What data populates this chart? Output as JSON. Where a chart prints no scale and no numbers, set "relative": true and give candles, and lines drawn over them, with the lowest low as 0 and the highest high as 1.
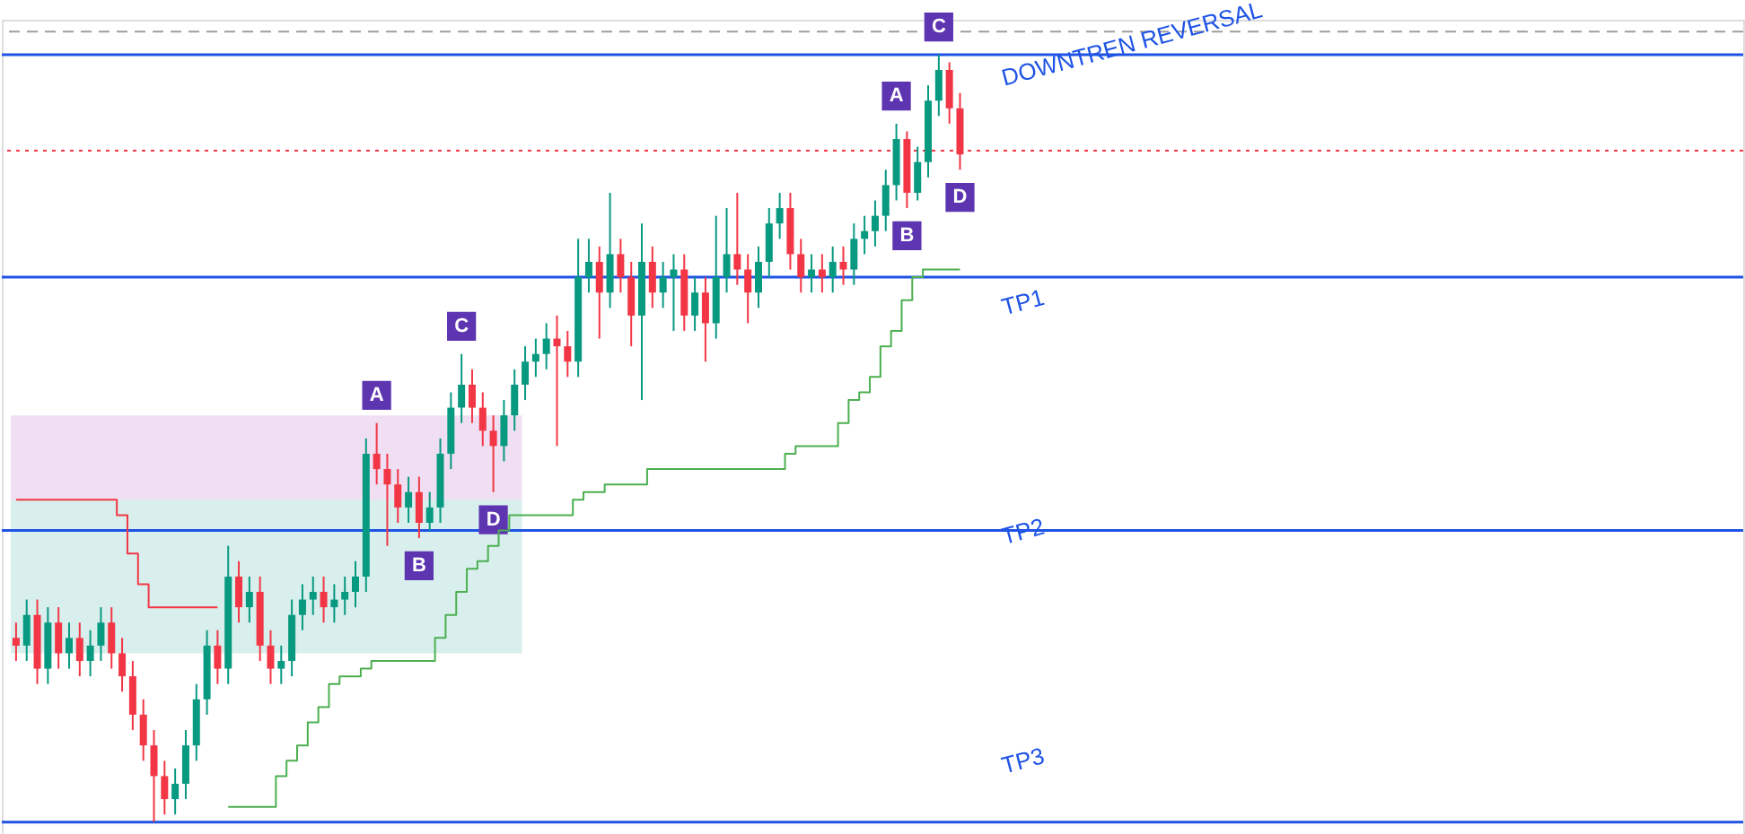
{
  "chart_data": {
    "type": "candlestick",
    "relative": true,
    "categories": [
      null,
      null,
      null,
      null,
      null,
      null,
      null,
      null,
      null,
      null,
      null,
      null,
      null,
      null,
      null,
      null,
      null,
      null,
      null,
      null,
      null,
      null,
      null,
      null,
      null,
      null,
      null,
      null,
      null,
      null,
      null,
      null,
      null,
      null,
      null,
      null,
      null,
      null,
      null,
      null,
      null,
      null,
      null,
      null,
      null,
      null,
      null,
      null,
      null,
      null,
      null,
      null,
      null,
      null,
      null,
      null,
      null,
      null,
      null,
      null,
      null,
      null,
      null,
      null,
      null,
      null,
      null,
      null,
      null,
      null,
      null,
      null,
      null,
      null,
      null,
      null,
      null,
      null,
      null,
      null,
      null,
      null,
      null,
      null,
      null,
      null,
      null,
      null,
      null,
      null
    ],
    "ohlc": [
      [
        0.24,
        0.26,
        0.21,
        0.23
      ],
      [
        0.23,
        0.29,
        0.21,
        0.27
      ],
      [
        0.27,
        0.29,
        0.18,
        0.2
      ],
      [
        0.2,
        0.28,
        0.18,
        0.26
      ],
      [
        0.26,
        0.28,
        0.2,
        0.22
      ],
      [
        0.22,
        0.26,
        0.2,
        0.24
      ],
      [
        0.24,
        0.26,
        0.19,
        0.21
      ],
      [
        0.21,
        0.25,
        0.19,
        0.23
      ],
      [
        0.23,
        0.28,
        0.21,
        0.26
      ],
      [
        0.26,
        0.28,
        0.2,
        0.22
      ],
      [
        0.22,
        0.24,
        0.17,
        0.19
      ],
      [
        0.19,
        0.21,
        0.12,
        0.14
      ],
      [
        0.14,
        0.16,
        0.08,
        0.1
      ],
      [
        0.1,
        0.12,
        0.0,
        0.06
      ],
      [
        0.06,
        0.08,
        0.01,
        0.03
      ],
      [
        0.03,
        0.07,
        0.01,
        0.05
      ],
      [
        0.05,
        0.12,
        0.03,
        0.1
      ],
      [
        0.1,
        0.18,
        0.08,
        0.16
      ],
      [
        0.16,
        0.25,
        0.14,
        0.23
      ],
      [
        0.23,
        0.25,
        0.18,
        0.2
      ],
      [
        0.2,
        0.36,
        0.18,
        0.32
      ],
      [
        0.32,
        0.34,
        0.26,
        0.28
      ],
      [
        0.28,
        0.32,
        0.26,
        0.3
      ],
      [
        0.3,
        0.32,
        0.21,
        0.23
      ],
      [
        0.23,
        0.25,
        0.18,
        0.2
      ],
      [
        0.2,
        0.23,
        0.18,
        0.21
      ],
      [
        0.21,
        0.29,
        0.19,
        0.27
      ],
      [
        0.27,
        0.31,
        0.25,
        0.29
      ],
      [
        0.29,
        0.32,
        0.27,
        0.3
      ],
      [
        0.3,
        0.32,
        0.26,
        0.28
      ],
      [
        0.28,
        0.31,
        0.26,
        0.29
      ],
      [
        0.29,
        0.32,
        0.27,
        0.3
      ],
      [
        0.3,
        0.34,
        0.28,
        0.32
      ],
      [
        0.32,
        0.5,
        0.3,
        0.48
      ],
      [
        0.48,
        0.52,
        0.44,
        0.46
      ],
      [
        0.46,
        0.48,
        0.36,
        0.44
      ],
      [
        0.44,
        0.46,
        0.39,
        0.41
      ],
      [
        0.41,
        0.45,
        0.39,
        0.43
      ],
      [
        0.43,
        0.45,
        0.37,
        0.39
      ],
      [
        0.39,
        0.43,
        0.38,
        0.41
      ],
      [
        0.41,
        0.5,
        0.39,
        0.48
      ],
      [
        0.48,
        0.56,
        0.46,
        0.54
      ],
      [
        0.54,
        0.61,
        0.52,
        0.57
      ],
      [
        0.57,
        0.59,
        0.52,
        0.54
      ],
      [
        0.54,
        0.56,
        0.49,
        0.51
      ],
      [
        0.51,
        0.53,
        0.43,
        0.49
      ],
      [
        0.49,
        0.55,
        0.47,
        0.53
      ],
      [
        0.53,
        0.59,
        0.51,
        0.57
      ],
      [
        0.57,
        0.62,
        0.55,
        0.6
      ],
      [
        0.6,
        0.63,
        0.58,
        0.61
      ],
      [
        0.61,
        0.65,
        0.59,
        0.63
      ],
      [
        0.63,
        0.66,
        0.49,
        0.62
      ],
      [
        0.62,
        0.64,
        0.58,
        0.6
      ],
      [
        0.6,
        0.76,
        0.58,
        0.71
      ],
      [
        0.71,
        0.76,
        0.69,
        0.73
      ],
      [
        0.73,
        0.75,
        0.63,
        0.69
      ],
      [
        0.69,
        0.82,
        0.67,
        0.74
      ],
      [
        0.74,
        0.76,
        0.69,
        0.71
      ],
      [
        0.71,
        0.73,
        0.62,
        0.66
      ],
      [
        0.66,
        0.78,
        0.55,
        0.73
      ],
      [
        0.73,
        0.75,
        0.67,
        0.69
      ],
      [
        0.69,
        0.73,
        0.67,
        0.71
      ],
      [
        0.71,
        0.74,
        0.64,
        0.72
      ],
      [
        0.72,
        0.74,
        0.64,
        0.66
      ],
      [
        0.66,
        0.71,
        0.64,
        0.69
      ],
      [
        0.69,
        0.71,
        0.6,
        0.65
      ],
      [
        0.65,
        0.79,
        0.63,
        0.71
      ],
      [
        0.71,
        0.8,
        0.69,
        0.74
      ],
      [
        0.74,
        0.82,
        0.7,
        0.72
      ],
      [
        0.72,
        0.74,
        0.65,
        0.69
      ],
      [
        0.69,
        0.75,
        0.67,
        0.73
      ],
      [
        0.73,
        0.8,
        0.71,
        0.78
      ],
      [
        0.78,
        0.82,
        0.76,
        0.8
      ],
      [
        0.8,
        0.82,
        0.72,
        0.74
      ],
      [
        0.74,
        0.76,
        0.69,
        0.71
      ],
      [
        0.71,
        0.74,
        0.69,
        0.72
      ],
      [
        0.72,
        0.74,
        0.69,
        0.71
      ],
      [
        0.71,
        0.75,
        0.69,
        0.73
      ],
      [
        0.73,
        0.75,
        0.7,
        0.72
      ],
      [
        0.72,
        0.78,
        0.7,
        0.76
      ],
      [
        0.76,
        0.79,
        0.74,
        0.77
      ],
      [
        0.77,
        0.81,
        0.75,
        0.79
      ],
      [
        0.79,
        0.85,
        0.77,
        0.83
      ],
      [
        0.83,
        0.91,
        0.81,
        0.89
      ],
      [
        0.89,
        0.9,
        0.8,
        0.82
      ],
      [
        0.82,
        0.88,
        0.81,
        0.86
      ],
      [
        0.86,
        0.96,
        0.84,
        0.94
      ],
      [
        0.94,
        1.0,
        0.92,
        0.98
      ],
      [
        0.98,
        0.99,
        0.91,
        0.93
      ],
      [
        0.93,
        0.95,
        0.85,
        0.87
      ]
    ],
    "series": [
      {
        "type": "step",
        "color": "#4caf50",
        "values": [
          null,
          null,
          null,
          null,
          null,
          null,
          null,
          null,
          null,
          null,
          null,
          null,
          null,
          null,
          null,
          null,
          null,
          null,
          null,
          null,
          0.02,
          0.02,
          0.02,
          0.02,
          0.02,
          0.06,
          0.08,
          0.1,
          0.13,
          0.15,
          0.18,
          0.19,
          0.19,
          0.2,
          0.21,
          0.21,
          0.21,
          0.21,
          0.21,
          0.21,
          0.24,
          0.27,
          0.3,
          0.33,
          0.34,
          0.36,
          0.38,
          0.4,
          0.4,
          0.4,
          0.4,
          0.4,
          0.4,
          0.42,
          0.43,
          0.43,
          0.44,
          0.44,
          0.44,
          0.44,
          0.46,
          0.46,
          0.46,
          0.46,
          0.46,
          0.46,
          0.46,
          0.46,
          0.46,
          0.46,
          0.46,
          0.46,
          0.46,
          0.48,
          0.49,
          0.49,
          0.49,
          0.49,
          0.52,
          0.55,
          0.56,
          0.58,
          0.62,
          0.64,
          0.68,
          0.71,
          0.72,
          0.72,
          0.72,
          0.72
        ]
      },
      {
        "type": "step",
        "color": "#f23645",
        "values": [
          0.42,
          0.42,
          0.42,
          0.42,
          0.42,
          0.42,
          0.42,
          0.42,
          0.42,
          0.42,
          0.4,
          0.35,
          0.31,
          0.28,
          0.28,
          0.28,
          0.28,
          0.28,
          0.28,
          0.28,
          null,
          null,
          null,
          null,
          null,
          null,
          null,
          null,
          null,
          null,
          null,
          null,
          null,
          null,
          null,
          null,
          null,
          null,
          null,
          null,
          null,
          null,
          null,
          null,
          null,
          null,
          null,
          null,
          null,
          null,
          null,
          null,
          null,
          null,
          null,
          null,
          null,
          null,
          null,
          null,
          null,
          null,
          null,
          null,
          null,
          null,
          null,
          null,
          null,
          null,
          null,
          null,
          null,
          null,
          null,
          null,
          null,
          null,
          null,
          null,
          null,
          null,
          null,
          null,
          null,
          null,
          null,
          null,
          null,
          null
        ]
      }
    ],
    "ref_lines": [
      {
        "axis": "y",
        "value": 1.0,
        "color": "#1e53e5"
      },
      {
        "axis": "y",
        "value": 0.71,
        "color": "#1e53e5"
      },
      {
        "axis": "y",
        "value": 0.38,
        "color": "#1e53e5"
      },
      {
        "axis": "y",
        "value": 0.0,
        "color": "#1e53e5"
      },
      {
        "axis": "y",
        "value": 0.875,
        "color": "#f23645",
        "line_style": "dotted"
      },
      {
        "axis": "y",
        "value": 1.03,
        "color": "#9e9e9e",
        "line_style": "dashed"
      }
    ],
    "bands": [
      {
        "axis": "y",
        "from": 0.42,
        "to": 0.53,
        "color": "#e1bee7"
      },
      {
        "axis": "y",
        "from": 0.22,
        "to": 0.42,
        "color": "#b2dfdb"
      }
    ],
    "annotations": [
      {
        "text": "A",
        "y": 0.52
      },
      {
        "text": "B",
        "y": 0.37
      },
      {
        "text": "C",
        "y": 0.61
      },
      {
        "text": "D",
        "y": 0.43
      },
      {
        "text": "A",
        "y": 0.91
      },
      {
        "text": "B",
        "y": 0.8
      },
      {
        "text": "C",
        "y": 1.0
      },
      {
        "text": "D",
        "y": 0.85
      },
      "DOWNTREN REVERSAL",
      "TP1",
      "TP2",
      "TP3"
    ]
  }
}
